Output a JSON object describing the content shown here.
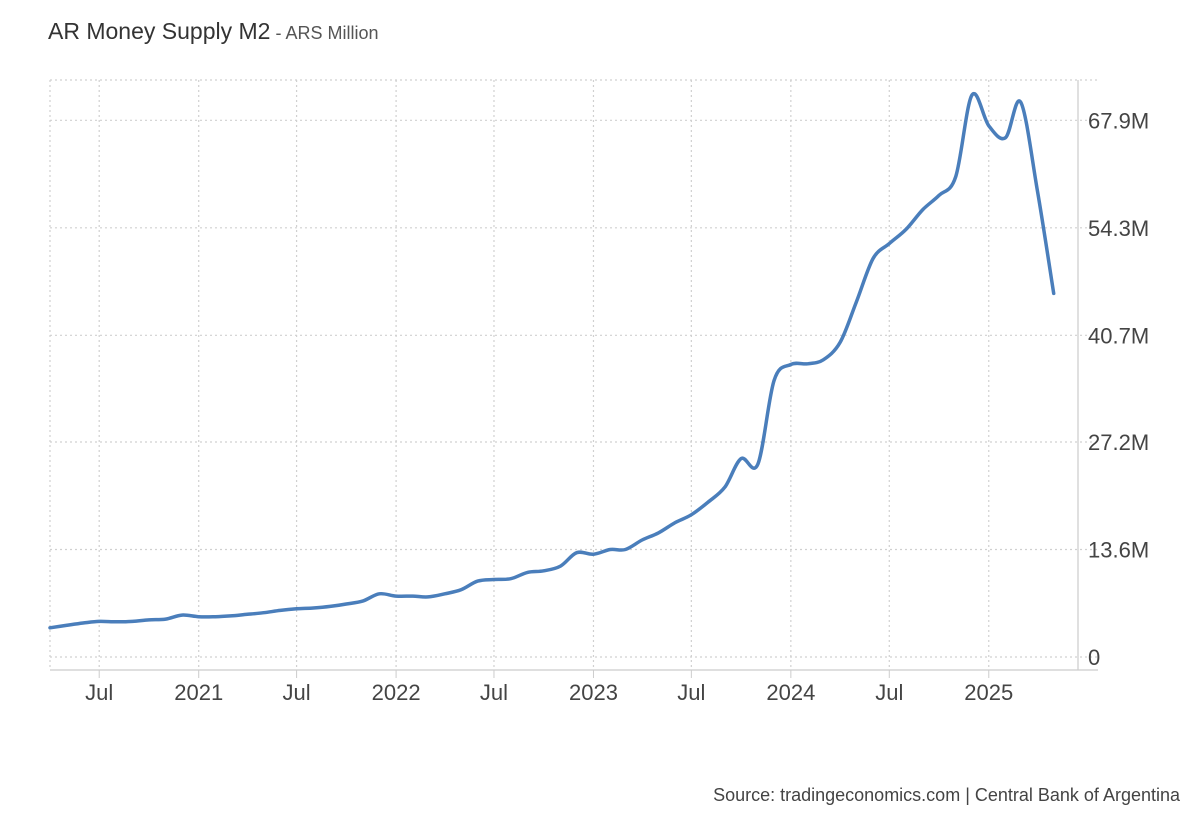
{
  "header": {
    "title": "AR Money Supply M2",
    "separator": " - ",
    "subtitle": "ARS Million"
  },
  "source_text": "Source: tradingeconomics.com | Central Bank of Argentina",
  "colors": {
    "line": "#4a7ebb",
    "grid": "#d0d0d0",
    "axis": "#cccccc",
    "text": "#444444"
  },
  "chart_data": {
    "type": "line",
    "title": "AR Money Supply M2",
    "subtitle": "ARS Million",
    "xlabel": "",
    "ylabel": "",
    "x_range": [
      "2020-04-01",
      "2025-06-15"
    ],
    "ylim": [
      0,
      73000000
    ],
    "grid": true,
    "y_axis_side": "right",
    "x_ticks": [
      {
        "date": "2020-07-01",
        "label": "Jul"
      },
      {
        "date": "2021-01-01",
        "label": "2021"
      },
      {
        "date": "2021-07-01",
        "label": "Jul"
      },
      {
        "date": "2022-01-01",
        "label": "2022"
      },
      {
        "date": "2022-07-01",
        "label": "Jul"
      },
      {
        "date": "2023-01-01",
        "label": "2023"
      },
      {
        "date": "2023-07-01",
        "label": "Jul"
      },
      {
        "date": "2024-01-01",
        "label": "2024"
      },
      {
        "date": "2024-07-01",
        "label": "Jul"
      },
      {
        "date": "2025-01-01",
        "label": "2025"
      }
    ],
    "y_ticks": [
      {
        "value": 0,
        "label": "0"
      },
      {
        "value": 13600000,
        "label": "13.6M"
      },
      {
        "value": 27200000,
        "label": "27.2M"
      },
      {
        "value": 40700000,
        "label": "40.7M"
      },
      {
        "value": 54300000,
        "label": "54.3M"
      },
      {
        "value": 67900000,
        "label": "67.9M"
      }
    ],
    "series": [
      {
        "points": [
          [
            "2020-04-01",
            3.7
          ],
          [
            "2020-05-01",
            4.0
          ],
          [
            "2020-06-01",
            4.3
          ],
          [
            "2020-07-01",
            4.5
          ],
          [
            "2020-08-01",
            4.45
          ],
          [
            "2020-09-01",
            4.5
          ],
          [
            "2020-10-01",
            4.7
          ],
          [
            "2020-11-01",
            4.8
          ],
          [
            "2020-12-01",
            5.3
          ],
          [
            "2021-01-01",
            5.1
          ],
          [
            "2021-02-01",
            5.1
          ],
          [
            "2021-03-01",
            5.2
          ],
          [
            "2021-04-01",
            5.4
          ],
          [
            "2021-05-01",
            5.6
          ],
          [
            "2021-06-01",
            5.9
          ],
          [
            "2021-07-01",
            6.1
          ],
          [
            "2021-08-01",
            6.2
          ],
          [
            "2021-09-01",
            6.4
          ],
          [
            "2021-10-01",
            6.7
          ],
          [
            "2021-11-01",
            7.1
          ],
          [
            "2021-12-01",
            8.0
          ],
          [
            "2022-01-01",
            7.7
          ],
          [
            "2022-02-01",
            7.7
          ],
          [
            "2022-03-01",
            7.6
          ],
          [
            "2022-04-01",
            8.0
          ],
          [
            "2022-05-01",
            8.5
          ],
          [
            "2022-06-01",
            9.6
          ],
          [
            "2022-07-01",
            9.8
          ],
          [
            "2022-08-01",
            9.9
          ],
          [
            "2022-09-01",
            10.7
          ],
          [
            "2022-10-01",
            10.9
          ],
          [
            "2022-11-01",
            11.5
          ],
          [
            "2022-12-01",
            13.2
          ],
          [
            "2023-01-01",
            13.0
          ],
          [
            "2023-02-01",
            13.6
          ],
          [
            "2023-03-01",
            13.6
          ],
          [
            "2023-04-01",
            14.8
          ],
          [
            "2023-05-01",
            15.7
          ],
          [
            "2023-06-01",
            17.0
          ],
          [
            "2023-07-01",
            18.0
          ],
          [
            "2023-08-01",
            19.6
          ],
          [
            "2023-09-01",
            21.5
          ],
          [
            "2023-10-01",
            25.1
          ],
          [
            "2023-11-01",
            24.4
          ],
          [
            "2023-12-01",
            35.0
          ],
          [
            "2024-01-01",
            37.0
          ],
          [
            "2024-02-01",
            37.1
          ],
          [
            "2024-03-01",
            37.6
          ],
          [
            "2024-04-01",
            39.8
          ],
          [
            "2024-05-01",
            44.9
          ],
          [
            "2024-06-01",
            50.4
          ],
          [
            "2024-07-01",
            52.3
          ],
          [
            "2024-08-01",
            54.1
          ],
          [
            "2024-09-01",
            56.6
          ],
          [
            "2024-10-01",
            58.4
          ],
          [
            "2024-11-01",
            60.8
          ],
          [
            "2024-12-01",
            71.1
          ],
          [
            "2025-01-01",
            67.2
          ],
          [
            "2025-02-01",
            65.7
          ],
          [
            "2025-03-01",
            70.2
          ],
          [
            "2025-04-01",
            59.0
          ],
          [
            "2025-05-01",
            46.0
          ]
        ]
      }
    ]
  }
}
